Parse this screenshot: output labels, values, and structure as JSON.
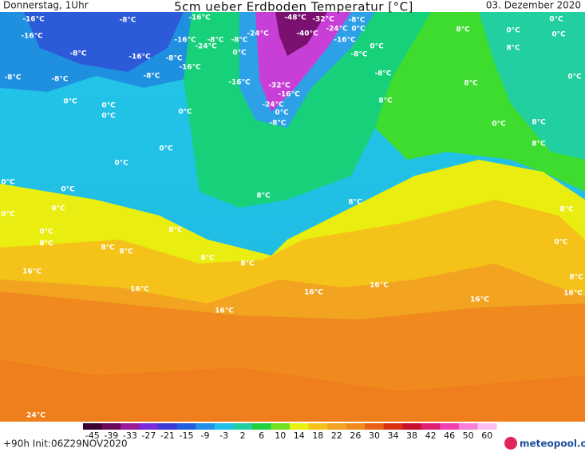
{
  "header": {
    "day": "Donnerstag, 1Uhr",
    "title": "5cm ueber Erdboden Temperatur [°C]",
    "date": "03. Dezember 2020"
  },
  "map": {
    "contour_labels": [
      "-16°C",
      "-16°C",
      "-8°C",
      "-16°C",
      "-16°C",
      "-8°C",
      "-24°C",
      "-8°C",
      "-24°C",
      "-48°C",
      "-32°C",
      "-8°C",
      "-40°C",
      "-24°C",
      "0°C",
      "-16°C",
      "0°C",
      "-8°C",
      "0°C",
      "-8°C",
      "-16°C",
      "-8°C",
      "-16°C",
      "-8°C",
      "-8°C",
      "-8°C",
      "-8°C",
      "-16°C",
      "-32°C",
      "-16°C",
      "-24°C",
      "0°C",
      "-8°C",
      "8°C",
      "0°C",
      "0°C",
      "0°C",
      "0°C",
      "0°C",
      "0°C",
      "0°C",
      "0°C",
      "0°C",
      "0°C",
      "0°C",
      "8°C",
      "8°C",
      "8°C",
      "8°C",
      "8°C",
      "8°C",
      "8°C",
      "8°C",
      "16°C",
      "16°C",
      "16°C",
      "16°C",
      "16°C",
      "16°C",
      "16°C",
      "24°C",
      "8°C",
      "0°C",
      "0°C",
      "0°C",
      "8°C",
      "8°C",
      "0°C",
      "8°C",
      "0°C",
      "8°C",
      "8°C",
      "0°C",
      "8°C"
    ]
  },
  "colorbar": {
    "ticks": [
      -45,
      -39,
      -33,
      -27,
      -21,
      -15,
      -9,
      -3,
      2,
      6,
      10,
      14,
      18,
      22,
      26,
      30,
      34,
      38,
      42,
      46,
      50,
      60
    ]
  },
  "footer": {
    "run": "+90h Init:06Z29NOV2020",
    "logo": "meteopool.org"
  }
}
